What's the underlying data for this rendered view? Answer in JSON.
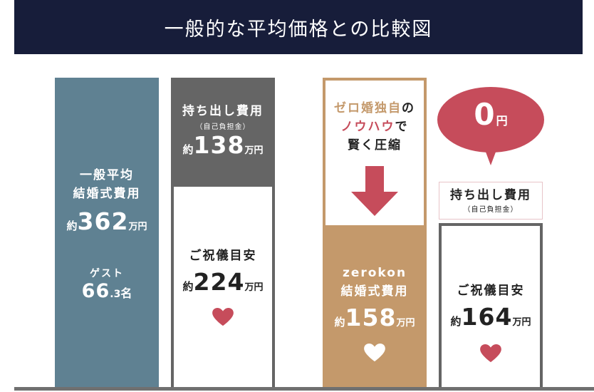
{
  "title": "一般的な平均価格との比較図",
  "colors": {
    "header": "#171d3a",
    "slate": "#5f8192",
    "darkgray": "#656565",
    "tan": "#c4996b",
    "pink": "#c64c5b",
    "white": "#ffffff"
  },
  "general": {
    "total": {
      "line1": "一般平均",
      "line2": "結婚式費用",
      "prefix": "約",
      "value": "362",
      "unit": "万円"
    },
    "guest": {
      "label": "ゲスト",
      "int": "66",
      "dec": ".3",
      "unit": "名"
    },
    "out_of_pocket": {
      "line1": "持ち出し費用",
      "sub": "（自己負担金）",
      "prefix": "約",
      "value": "138",
      "unit": "万円"
    },
    "gift": {
      "label": "ご祝儀目安",
      "prefix": "約",
      "value": "224",
      "unit": "万円"
    }
  },
  "zerokon": {
    "note": {
      "part1": "ゼロ婚独自",
      "part2": "の",
      "part3": "ノウハウ",
      "part4": "で",
      "line3": "賢く圧縮"
    },
    "cost": {
      "line1": "zerokon",
      "line2": "結婚式費用",
      "prefix": "約",
      "value": "158",
      "unit": "万円"
    },
    "gift": {
      "label": "ご祝儀目安",
      "prefix": "約",
      "value": "164",
      "unit": "万円"
    },
    "out_of_pocket": {
      "line1": "持ち出し費用",
      "sub": "（自己負担金）"
    },
    "bubble": {
      "value": "0",
      "unit": "円"
    }
  },
  "chart_data": {
    "type": "bar",
    "unit": "万円",
    "categories": [
      "一般平均 結婚式費用",
      "一般 ご祝儀目安 + 持ち出し費用",
      "zerokon 結婚式費用",
      "zerokon ご祝儀目安 + 持ち出し費用"
    ],
    "series": [
      {
        "name": "結婚式費用",
        "values": [
          362,
          null,
          158,
          null
        ]
      },
      {
        "name": "ご祝儀目安",
        "values": [
          null,
          224,
          null,
          164
        ]
      },
      {
        "name": "持ち出し費用",
        "values": [
          null,
          138,
          null,
          0
        ]
      }
    ],
    "annotations": [
      "ゲスト 66.3名",
      "ゼロ婚独自のノウハウで賢く圧縮"
    ]
  }
}
